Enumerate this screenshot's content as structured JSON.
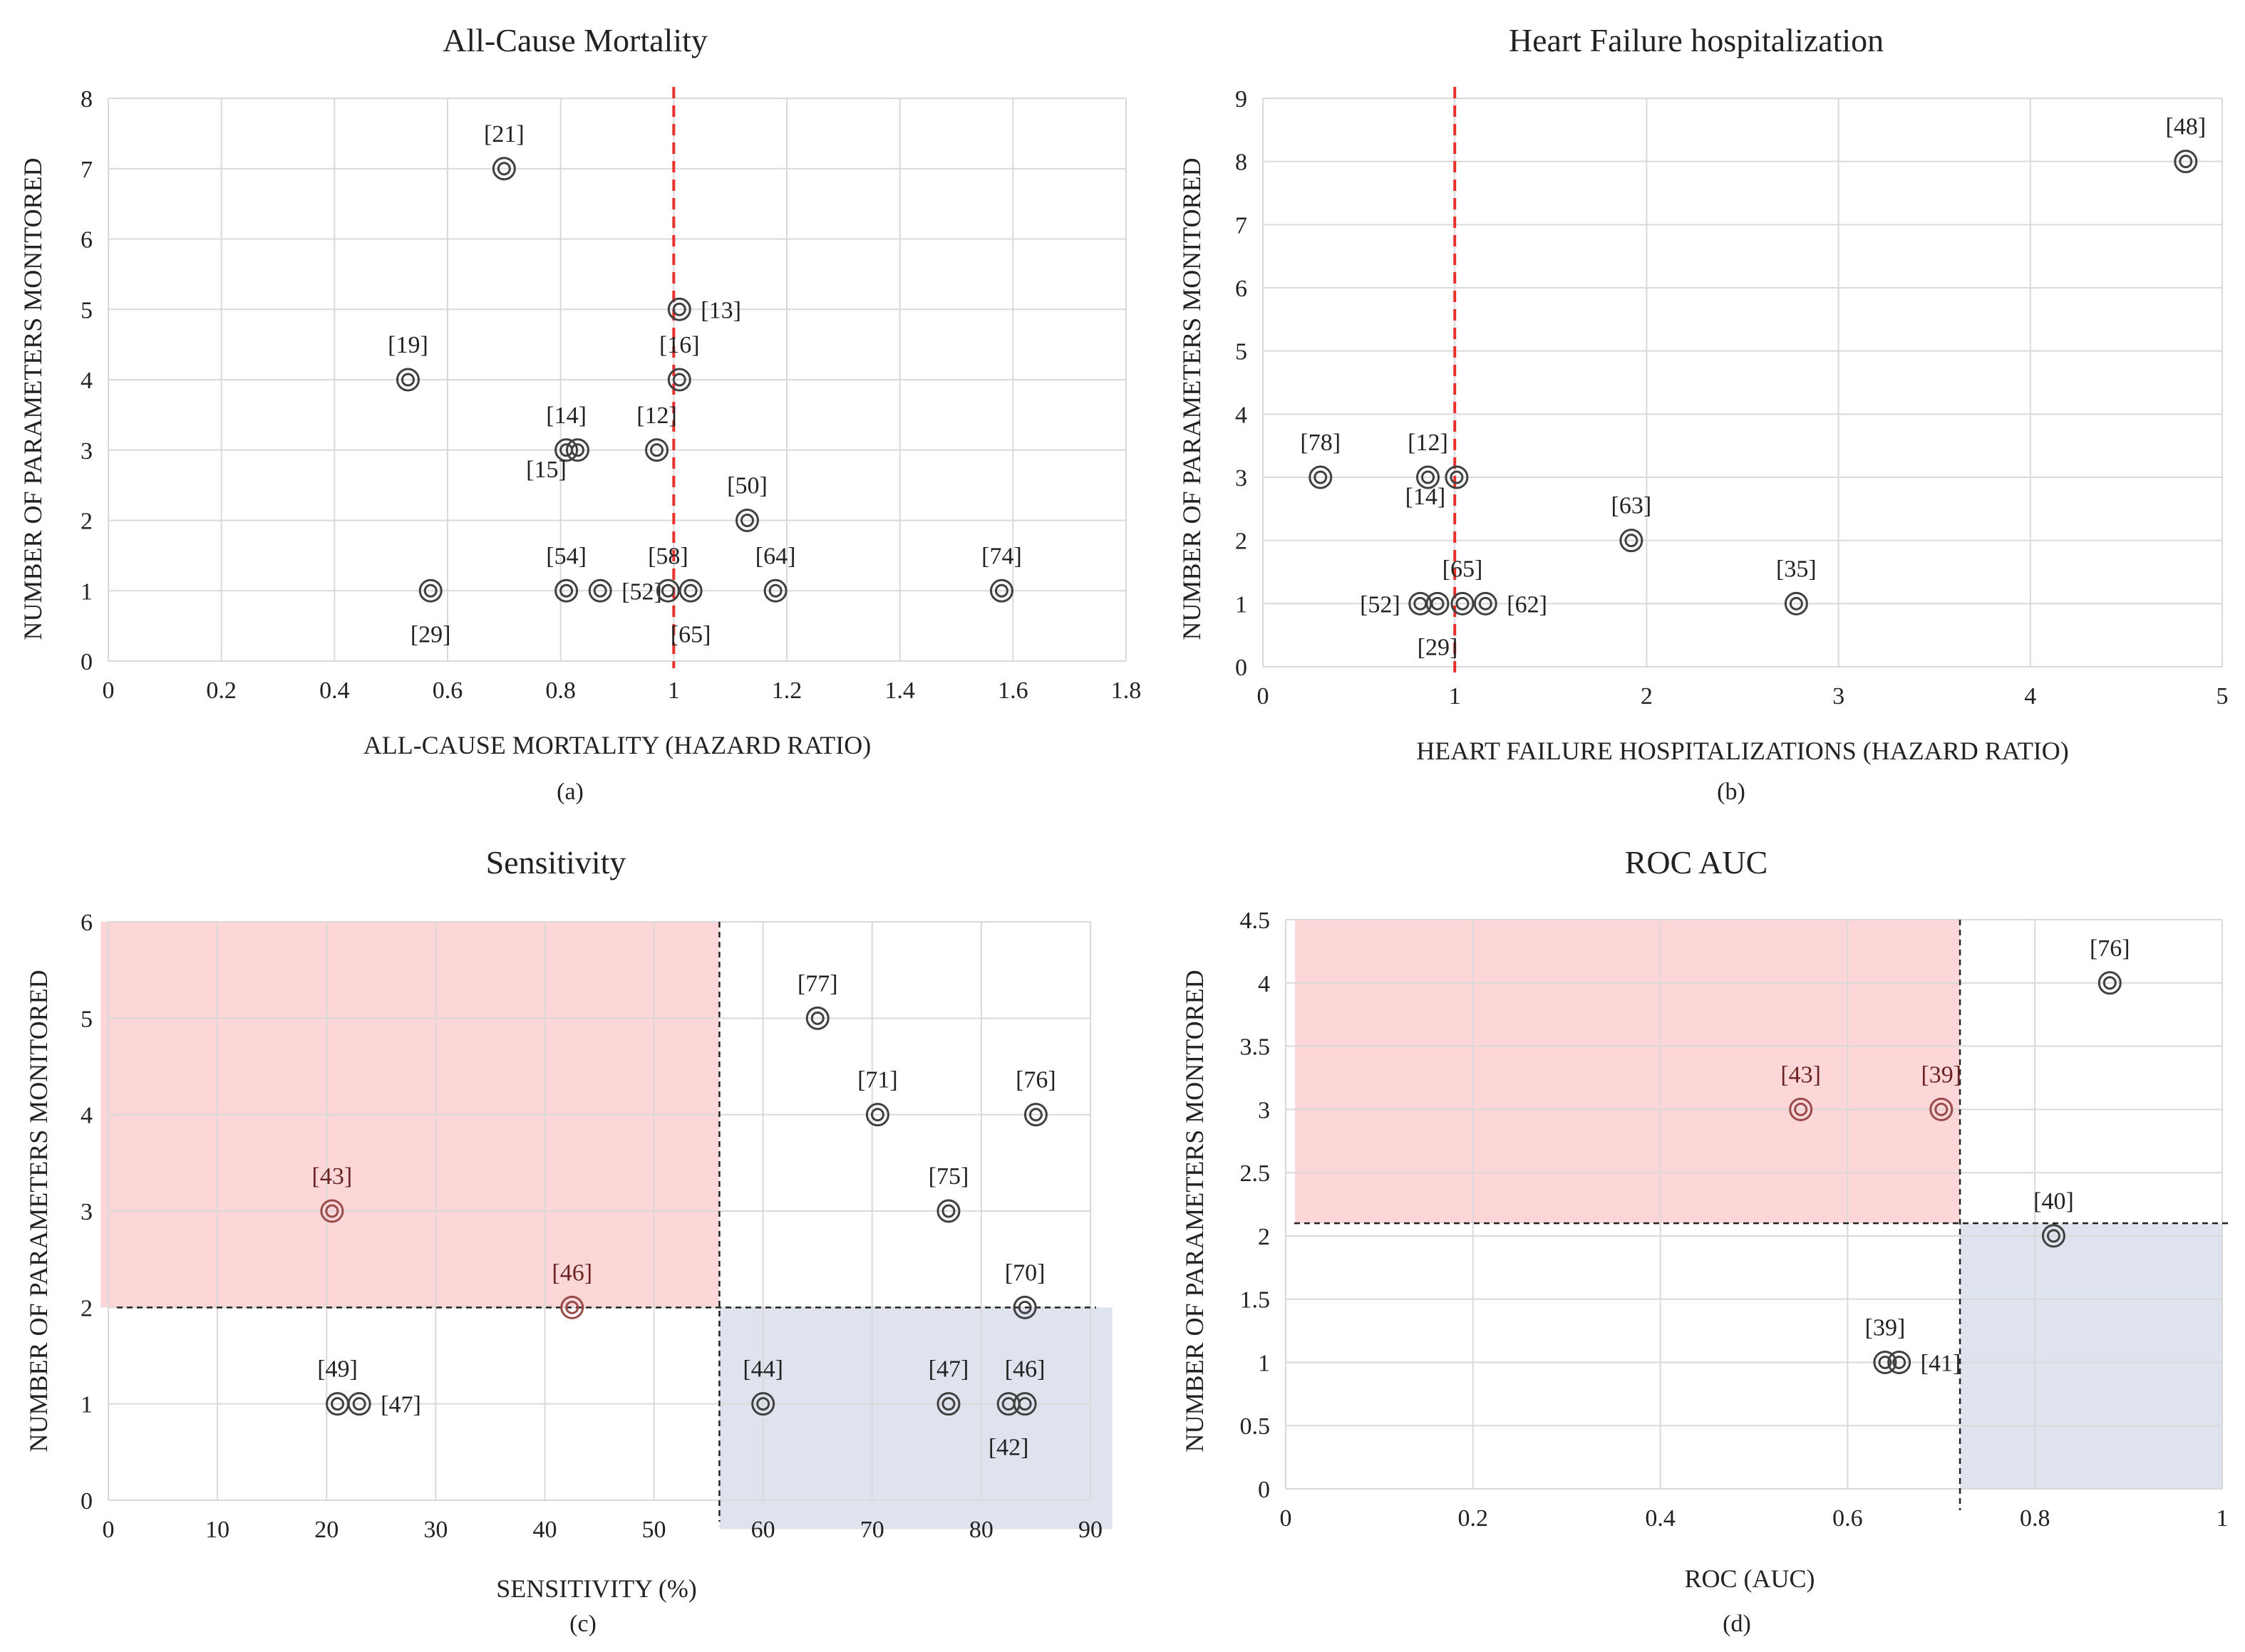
{
  "chart_data": [
    {
      "id": "a",
      "type": "scatter",
      "title": "All-Cause Mortality",
      "xlabel": "ALL-CAUSE MORTALITY (HAZARD RATIO)",
      "ylabel": "NUMBER OF PARAMETERS MONITORED",
      "caption": "(a)",
      "xlim": [
        0,
        1.8
      ],
      "ylim": [
        0,
        8
      ],
      "xticks": [
        0,
        0.2,
        0.4,
        0.6,
        0.8,
        1,
        1.2,
        1.4,
        1.6,
        1.8
      ],
      "xtick_labels": [
        "0",
        "0.2",
        "0.4",
        "0.6",
        "0.8",
        "1",
        "1.2",
        "1.4",
        "1.6",
        "1.8"
      ],
      "yticks": [
        0,
        1,
        2,
        3,
        4,
        5,
        6,
        7,
        8
      ],
      "ytick_labels": [
        "0",
        "1",
        "2",
        "3",
        "4",
        "5",
        "6",
        "7",
        "8"
      ],
      "reference_line": {
        "x": 1,
        "color": "#e8312a",
        "style": "dashed"
      },
      "points": [
        {
          "x": 0.7,
          "y": 7,
          "label": "[21]",
          "pos": "above"
        },
        {
          "x": 1.01,
          "y": 5,
          "label": "[13]",
          "pos": "right"
        },
        {
          "x": 0.53,
          "y": 4,
          "label": "[19]",
          "pos": "above"
        },
        {
          "x": 1.01,
          "y": 4,
          "label": "[16]",
          "pos": "above"
        },
        {
          "x": 0.81,
          "y": 3,
          "label": "[14]",
          "pos": "above"
        },
        {
          "x": 0.83,
          "y": 3,
          "label": "[15]",
          "pos": "below-left"
        },
        {
          "x": 0.97,
          "y": 3,
          "label": "[12]",
          "pos": "above"
        },
        {
          "x": 1.13,
          "y": 2,
          "label": "[50]",
          "pos": "above"
        },
        {
          "x": 0.57,
          "y": 1,
          "label": "[29]",
          "pos": "below"
        },
        {
          "x": 0.81,
          "y": 1,
          "label": "[54]",
          "pos": "above"
        },
        {
          "x": 0.87,
          "y": 1,
          "label": "[52]",
          "pos": "right"
        },
        {
          "x": 0.99,
          "y": 1,
          "label": "[58]",
          "pos": "above"
        },
        {
          "x": 1.03,
          "y": 1,
          "label": "[65]",
          "pos": "below"
        },
        {
          "x": 1.18,
          "y": 1,
          "label": "[64]",
          "pos": "above"
        },
        {
          "x": 1.58,
          "y": 1,
          "label": "[74]",
          "pos": "above"
        }
      ]
    },
    {
      "id": "b",
      "type": "scatter",
      "title": "Heart Failure hospitalization",
      "xlabel": "HEART FAILURE HOSPITALIZATIONS (HAZARD RATIO)",
      "ylabel": "NUMBER OF PARAMETERS MONITORED",
      "caption": "(b)",
      "xlim": [
        0,
        5
      ],
      "ylim": [
        0,
        9
      ],
      "xticks": [
        0,
        1,
        2,
        3,
        4,
        5
      ],
      "xtick_labels": [
        "0",
        "1",
        "2",
        "3",
        "4",
        "5"
      ],
      "yticks": [
        0,
        1,
        2,
        3,
        4,
        5,
        6,
        7,
        8,
        9
      ],
      "ytick_labels": [
        "0",
        "1",
        "2",
        "3",
        "4",
        "5",
        "6",
        "7",
        "8",
        "9"
      ],
      "reference_line": {
        "x": 1,
        "color": "#e8312a",
        "style": "dashed"
      },
      "points": [
        {
          "x": 4.81,
          "y": 8,
          "label": "[48]",
          "pos": "above"
        },
        {
          "x": 0.3,
          "y": 3,
          "label": "[78]",
          "pos": "above"
        },
        {
          "x": 0.86,
          "y": 3,
          "label": "[12]",
          "pos": "above"
        },
        {
          "x": 1.01,
          "y": 3,
          "label": "[14]",
          "pos": "below-left"
        },
        {
          "x": 1.92,
          "y": 2,
          "label": "[63]",
          "pos": "above"
        },
        {
          "x": 2.78,
          "y": 1,
          "label": "[35]",
          "pos": "above"
        },
        {
          "x": 0.82,
          "y": 1,
          "label": "[52]",
          "pos": "left"
        },
        {
          "x": 0.91,
          "y": 1,
          "label": "[29]",
          "pos": "below"
        },
        {
          "x": 1.04,
          "y": 1,
          "label": "[65]",
          "pos": "above"
        },
        {
          "x": 1.16,
          "y": 1,
          "label": "[62]",
          "pos": "right"
        }
      ]
    },
    {
      "id": "c",
      "type": "scatter",
      "title": "Sensitivity",
      "xlabel": "SENSITIVITY (%)",
      "ylabel": "NUMBER OF PARAMETERS MONITORED",
      "caption": "(c)",
      "xlim": [
        0,
        90
      ],
      "ylim": [
        0,
        6
      ],
      "xticks": [
        0,
        10,
        20,
        30,
        40,
        50,
        60,
        70,
        80,
        90
      ],
      "xtick_labels": [
        "0",
        "10",
        "20",
        "30",
        "40",
        "50",
        "60",
        "70",
        "80",
        "90"
      ],
      "yticks": [
        0,
        1,
        2,
        3,
        4,
        5,
        6
      ],
      "ytick_labels": [
        "0",
        "1",
        "2",
        "3",
        "4",
        "5",
        "6"
      ],
      "threshold": {
        "x": 56,
        "y": 2
      },
      "regions": [
        {
          "name": "low-sensitivity-region",
          "x0": -0.7,
          "x1": 56,
          "y0": 2,
          "y1": 6,
          "color": "#fdd5d6"
        },
        {
          "name": "high-sensitivity-region",
          "x0": 56,
          "x1": 92,
          "y0": -0.3,
          "y1": 2,
          "color": "#dde2ec"
        }
      ],
      "points": [
        {
          "x": 65,
          "y": 5,
          "label": "[77]",
          "pos": "above"
        },
        {
          "x": 70.5,
          "y": 4,
          "label": "[71]",
          "pos": "above"
        },
        {
          "x": 85,
          "y": 4,
          "label": "[76]",
          "pos": "above"
        },
        {
          "x": 20.5,
          "y": 3,
          "label": "[43]",
          "pos": "above",
          "highlight": true
        },
        {
          "x": 77,
          "y": 3,
          "label": "[75]",
          "pos": "above"
        },
        {
          "x": 42.5,
          "y": 2,
          "label": "[46]",
          "pos": "above",
          "highlight": true
        },
        {
          "x": 84,
          "y": 2,
          "label": "[70]",
          "pos": "above"
        },
        {
          "x": 21,
          "y": 1,
          "label": "[49]",
          "pos": "above"
        },
        {
          "x": 23,
          "y": 1,
          "label": "[47]",
          "pos": "right"
        },
        {
          "x": 60,
          "y": 1,
          "label": "[44]",
          "pos": "above"
        },
        {
          "x": 77,
          "y": 1,
          "label": "[47]",
          "pos": "above"
        },
        {
          "x": 82.5,
          "y": 1,
          "label": "[42]",
          "pos": "below"
        },
        {
          "x": 84,
          "y": 1,
          "label": "[46]",
          "pos": "above"
        }
      ]
    },
    {
      "id": "d",
      "type": "scatter",
      "title": "ROC AUC",
      "xlabel": "ROC (AUC)",
      "ylabel": "NUMBER OF PARAMETERS MONITORED",
      "caption": "(d)",
      "xlim": [
        0,
        1
      ],
      "ylim": [
        0,
        4.5
      ],
      "xticks": [
        0,
        0.2,
        0.4,
        0.6,
        0.8,
        1
      ],
      "xtick_labels": [
        "0",
        "0.2",
        "0.4",
        "0.6",
        "0.8",
        "1"
      ],
      "yticks": [
        0,
        0.5,
        1,
        1.5,
        2,
        2.5,
        3,
        3.5,
        4,
        4.5
      ],
      "ytick_labels": [
        "0",
        "0.5",
        "1",
        "1.5",
        "2",
        "2.5",
        "3",
        "3.5",
        "4",
        "4.5"
      ],
      "threshold": {
        "x": 0.72,
        "y": 2.1
      },
      "regions": [
        {
          "name": "low-auc-region",
          "x0": 0.01,
          "x1": 0.72,
          "y0": 2.1,
          "y1": 4.5,
          "color": "#fdd5d6"
        },
        {
          "name": "high-auc-region",
          "x0": 0.72,
          "x1": 1,
          "y0": 0,
          "y1": 2.1,
          "color": "#dde2ec"
        }
      ],
      "points": [
        {
          "x": 0.88,
          "y": 4,
          "label": "[76]",
          "pos": "above"
        },
        {
          "x": 0.55,
          "y": 3,
          "label": "[43]",
          "pos": "above",
          "highlight": true
        },
        {
          "x": 0.7,
          "y": 3,
          "label": "[39]",
          "pos": "above",
          "highlight": true
        },
        {
          "x": 0.82,
          "y": 2,
          "label": "[40]",
          "pos": "above"
        },
        {
          "x": 0.64,
          "y": 1,
          "label": "[39]",
          "pos": "above"
        },
        {
          "x": 0.655,
          "y": 1,
          "label": "[41]",
          "pos": "right"
        }
      ]
    }
  ],
  "colors": {
    "grid": "#d9d9d9",
    "marker": "#404040",
    "highlight_marker": "#9b4a4a",
    "highlight_label": "#6b2222",
    "reference_line": "#e8312a",
    "threshold_line": "#222222"
  }
}
